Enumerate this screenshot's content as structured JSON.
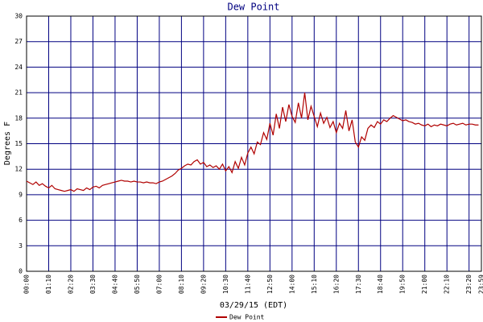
{
  "chart_data": {
    "type": "line",
    "title": "Dew Point",
    "y_label": "Degrees F",
    "x_label": "03/29/15 (EDT)",
    "x": [
      0,
      10,
      20,
      30,
      40,
      50,
      60,
      70,
      80,
      90,
      100,
      110,
      120,
      130,
      140,
      150,
      160,
      170,
      180,
      190,
      200,
      210,
      220,
      230,
      240,
      250,
      260,
      270,
      280,
      290,
      300,
      310,
      320,
      330,
      340,
      350,
      360,
      370,
      380,
      390,
      400,
      410,
      420,
      430,
      440,
      450,
      460,
      470,
      480,
      490,
      500,
      510,
      520,
      530,
      540,
      550,
      560,
      570,
      580,
      590,
      600,
      610,
      620,
      630,
      640,
      650,
      660,
      670,
      680,
      690,
      700,
      710,
      720,
      730,
      740,
      750,
      760,
      770,
      780,
      790,
      800,
      810,
      820,
      830,
      840,
      850,
      860,
      870,
      880,
      890,
      900,
      910,
      920,
      930,
      940,
      950,
      960,
      970,
      980,
      990,
      1000,
      1010,
      1020,
      1030,
      1040,
      1050,
      1060,
      1070,
      1080,
      1090,
      1100,
      1110,
      1120,
      1130,
      1140,
      1150,
      1160,
      1170,
      1180,
      1190,
      1200,
      1210,
      1220,
      1230,
      1240,
      1250,
      1260,
      1270,
      1280,
      1290,
      1300,
      1310,
      1320,
      1330,
      1340,
      1350,
      1360,
      1370,
      1380,
      1390,
      1400,
      1410,
      1420,
      1430
    ],
    "series": [
      {
        "name": "Dew Point",
        "color": "#b00000",
        "values": [
          10.6,
          10.4,
          10.2,
          10.5,
          10.1,
          10.3,
          10.0,
          9.8,
          10.1,
          9.7,
          9.6,
          9.5,
          9.4,
          9.5,
          9.6,
          9.4,
          9.7,
          9.6,
          9.5,
          9.8,
          9.6,
          9.9,
          10.0,
          9.8,
          10.1,
          10.2,
          10.3,
          10.4,
          10.5,
          10.6,
          10.7,
          10.6,
          10.6,
          10.5,
          10.6,
          10.5,
          10.5,
          10.4,
          10.5,
          10.4,
          10.4,
          10.3,
          10.5,
          10.6,
          10.8,
          11.0,
          11.2,
          11.5,
          11.9,
          12.1,
          12.4,
          12.6,
          12.5,
          12.9,
          13.1,
          12.6,
          12.8,
          12.3,
          12.5,
          12.2,
          12.4,
          12.0,
          12.6,
          11.8,
          12.3,
          11.6,
          12.9,
          12.1,
          13.4,
          12.5,
          13.9,
          14.6,
          13.8,
          15.2,
          14.9,
          16.3,
          15.5,
          17.4,
          16.0,
          18.5,
          16.8,
          19.3,
          17.6,
          19.6,
          18.2,
          17.5,
          19.8,
          18.0,
          21.0,
          17.8,
          19.4,
          18.2,
          17.0,
          18.6,
          17.4,
          18.1,
          16.9,
          17.6,
          16.3,
          17.4,
          16.8,
          18.9,
          16.5,
          17.8,
          15.2,
          14.6,
          15.8,
          15.4,
          16.8,
          17.2,
          16.9,
          17.6,
          17.3,
          17.8,
          17.6,
          18.0,
          18.3,
          18.1,
          17.9,
          17.7,
          17.8,
          17.6,
          17.5,
          17.3,
          17.4,
          17.2,
          17.1,
          17.3,
          17.0,
          17.2,
          17.1,
          17.3,
          17.2,
          17.1,
          17.3,
          17.4,
          17.2,
          17.3,
          17.4,
          17.2,
          17.3,
          17.3,
          17.2,
          17.2
        ]
      }
    ],
    "xlim": [
      0,
      1439
    ],
    "xticks": [
      {
        "value": 0,
        "label": "00:00"
      },
      {
        "value": 70,
        "label": "01:10"
      },
      {
        "value": 140,
        "label": "02:20"
      },
      {
        "value": 210,
        "label": "03:30"
      },
      {
        "value": 280,
        "label": "04:40"
      },
      {
        "value": 350,
        "label": "05:50"
      },
      {
        "value": 420,
        "label": "07:00"
      },
      {
        "value": 490,
        "label": "08:10"
      },
      {
        "value": 560,
        "label": "09:20"
      },
      {
        "value": 630,
        "label": "10:30"
      },
      {
        "value": 700,
        "label": "11:40"
      },
      {
        "value": 770,
        "label": "12:50"
      },
      {
        "value": 840,
        "label": "14:00"
      },
      {
        "value": 910,
        "label": "15:10"
      },
      {
        "value": 980,
        "label": "16:20"
      },
      {
        "value": 1050,
        "label": "17:30"
      },
      {
        "value": 1120,
        "label": "18:40"
      },
      {
        "value": 1190,
        "label": "19:50"
      },
      {
        "value": 1260,
        "label": "21:00"
      },
      {
        "value": 1330,
        "label": "22:10"
      },
      {
        "value": 1400,
        "label": "23:20"
      },
      {
        "value": 1439,
        "label": "23:59"
      }
    ],
    "ylim": [
      0,
      30
    ],
    "yticks": [
      0,
      3,
      6,
      9,
      12,
      15,
      18,
      21,
      24,
      27,
      30
    ],
    "grid": true,
    "grid_color": "#000080"
  }
}
